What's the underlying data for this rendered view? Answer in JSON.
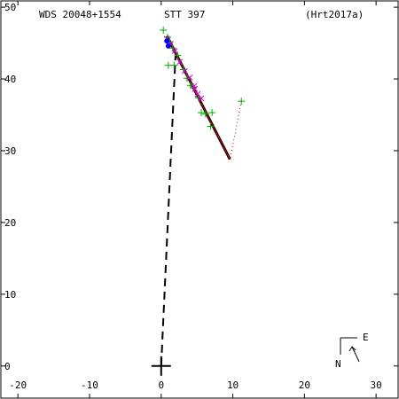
{
  "chart_data": {
    "type": "scatter",
    "header": {
      "left": "WDS 20048+1554",
      "center": "STT 397",
      "right": "(Hrt2017a)"
    },
    "xlim": [
      -22.5,
      33.2
    ],
    "ylim": [
      -4.6,
      51.0
    ],
    "x_ticks": [
      -20,
      -10,
      0,
      10,
      20,
      30
    ],
    "y_ticks": [
      0,
      10,
      20,
      30,
      40,
      50
    ],
    "x_tick_labels": [
      "-20",
      "-10",
      "0",
      "10",
      "20",
      "30"
    ],
    "y_tick_labels": [
      "0",
      "10",
      "20",
      "30",
      "40",
      "50"
    ],
    "primary": {
      "x": 0,
      "y": 0
    },
    "orbit_line": [
      [
        0.8,
        46.0
      ],
      [
        9.6,
        28.8
      ]
    ],
    "periastron_line": [
      [
        0,
        0
      ],
      [
        2.0,
        43.2
      ]
    ],
    "residual_line": [
      [
        11.2,
        36.9
      ],
      [
        9.6,
        28.8
      ]
    ],
    "green_plus": [
      [
        0.3,
        46.8
      ],
      [
        0.9,
        45.8
      ],
      [
        1.2,
        45.1
      ],
      [
        1.6,
        44.3
      ],
      [
        2.3,
        43.3
      ],
      [
        1.0,
        41.9
      ],
      [
        1.8,
        41.9
      ],
      [
        3.1,
        41.3
      ],
      [
        3.6,
        40.1
      ],
      [
        4.1,
        39.1
      ],
      [
        4.5,
        38.9
      ],
      [
        5.2,
        37.4
      ],
      [
        5.6,
        35.3
      ],
      [
        6.2,
        35.1
      ],
      [
        7.1,
        35.3
      ],
      [
        6.9,
        33.4
      ],
      [
        11.2,
        36.9
      ]
    ],
    "magenta_x": [
      [
        0.8,
        45.6
      ],
      [
        1.3,
        44.9
      ],
      [
        1.9,
        43.9
      ],
      [
        2.6,
        42.4
      ],
      [
        3.3,
        41.1
      ],
      [
        4.0,
        40.2
      ],
      [
        4.6,
        39.0
      ],
      [
        5.1,
        37.9
      ],
      [
        5.6,
        37.3
      ],
      [
        4.7,
        38.6
      ]
    ],
    "blue_points": [
      [
        1.0,
        44.6
      ],
      [
        0.8,
        45.3
      ]
    ],
    "compass": {
      "north": "N",
      "east": "E"
    },
    "colors": {
      "orbit": "#000000",
      "orbit_inner": "#cc0000",
      "green": "#00aa00",
      "magenta": "#dd00dd",
      "blue": "#0000ff"
    }
  }
}
